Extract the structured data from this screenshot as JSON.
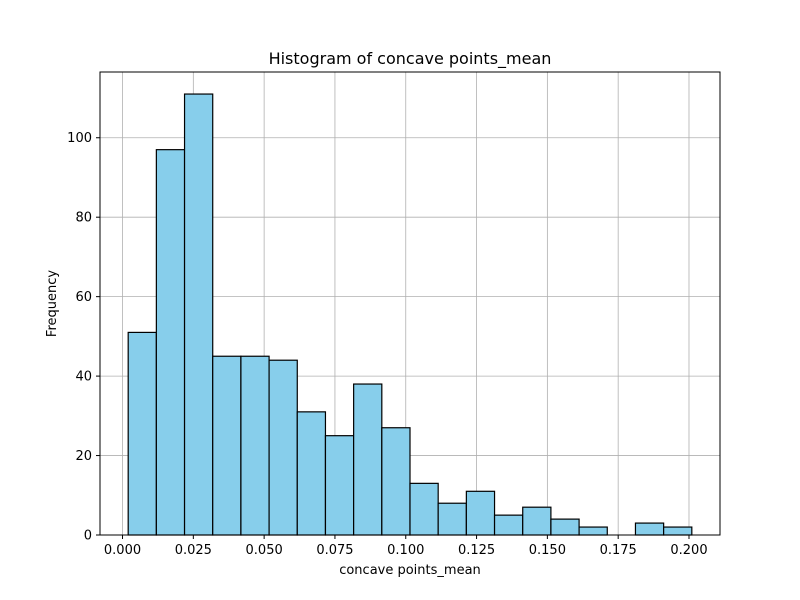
{
  "chart_data": {
    "type": "bar",
    "title": "Histogram of concave points_mean",
    "xlabel": "concave points_mean",
    "ylabel": "Frequency",
    "bin_edges": [
      0.002,
      0.01195,
      0.0219,
      0.03185,
      0.0418,
      0.05175,
      0.0617,
      0.07165,
      0.0816,
      0.09155,
      0.1015,
      0.11145,
      0.1214,
      0.13135,
      0.1413,
      0.15125,
      0.1612,
      0.17115,
      0.1811,
      0.19105,
      0.201
    ],
    "values": [
      51,
      97,
      111,
      45,
      45,
      44,
      31,
      25,
      38,
      27,
      13,
      8,
      11,
      5,
      7,
      4,
      2,
      0,
      3,
      2
    ],
    "xlim": [
      -0.00795,
      0.21095
    ],
    "ylim": [
      0,
      116.55
    ],
    "xticks": [
      0.0,
      0.025,
      0.05,
      0.075,
      0.1,
      0.125,
      0.15,
      0.175,
      0.2
    ],
    "xtick_labels": [
      "0.000",
      "0.025",
      "0.050",
      "0.075",
      "0.100",
      "0.125",
      "0.150",
      "0.175",
      "0.200"
    ],
    "yticks": [
      0,
      20,
      40,
      60,
      80,
      100
    ],
    "ytick_labels": [
      "0",
      "20",
      "40",
      "60",
      "80",
      "100"
    ],
    "grid": true,
    "colors": {
      "bar_fill": "#87ceeb",
      "bar_edge": "#000000",
      "grid": "#b0b0b0",
      "axis": "#000000"
    }
  }
}
